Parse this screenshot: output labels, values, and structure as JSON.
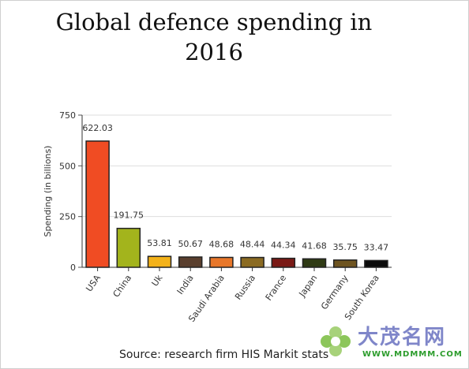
{
  "chart_data": {
    "type": "bar",
    "title": "Global defence spending in 2016",
    "ylabel": "Spending (in billions)",
    "xlabel": "",
    "ylim": [
      0,
      750
    ],
    "yticks": [
      0,
      250,
      500,
      750
    ],
    "grid": true,
    "categories": [
      "USA",
      "China",
      "Uk",
      "India",
      "Saudi Arabia",
      "Russia",
      "France",
      "Japan",
      "Germany",
      "South Korea"
    ],
    "values": [
      622.03,
      191.75,
      53.81,
      50.67,
      48.68,
      48.44,
      44.34,
      41.68,
      35.75,
      33.47
    ],
    "value_labels": [
      "622.03",
      "191.75",
      "53.81",
      "50.67",
      "48.68",
      "48.44",
      "44.34",
      "41.68",
      "35.75",
      "33.47"
    ],
    "colors": [
      "#f04c23",
      "#a3b41c",
      "#f3b21a",
      "#5a3f2e",
      "#e8772a",
      "#8b6b22",
      "#7a1a16",
      "#2f3a14",
      "#6e5420",
      "#0b0b0b"
    ]
  },
  "footer": {
    "source": "Source: research firm HIS Markit stats"
  },
  "watermark": {
    "text_cn": "大茂名网",
    "url": "WWW.MDMMM.COM"
  }
}
